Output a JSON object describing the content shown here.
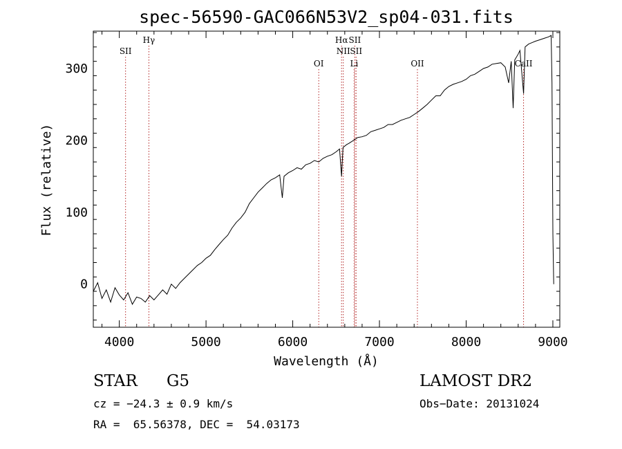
{
  "chart_data": {
    "type": "line",
    "title": "spec-56590-GAC066N53V2_sp04-031.fits",
    "xlabel": "Wavelength (Å)",
    "ylabel": "Flux (relative)",
    "xlim": [
      3700,
      9080
    ],
    "ylim": [
      -60,
      352
    ],
    "xticks": [
      4000,
      5000,
      6000,
      7000,
      8000,
      9000
    ],
    "yticks": [
      0,
      100,
      200,
      300
    ],
    "line_color": "#000000",
    "marker_color": "#b22222",
    "spectrum": [
      [
        3700,
        -10
      ],
      [
        3750,
        2
      ],
      [
        3800,
        -20
      ],
      [
        3850,
        -8
      ],
      [
        3900,
        -25
      ],
      [
        3950,
        -5
      ],
      [
        4000,
        -15
      ],
      [
        4050,
        -22
      ],
      [
        4100,
        -12
      ],
      [
        4150,
        -28
      ],
      [
        4200,
        -18
      ],
      [
        4250,
        -20
      ],
      [
        4300,
        -25
      ],
      [
        4350,
        -16
      ],
      [
        4400,
        -22
      ],
      [
        4450,
        -15
      ],
      [
        4500,
        -8
      ],
      [
        4550,
        -14
      ],
      [
        4600,
        0
      ],
      [
        4650,
        -6
      ],
      [
        4700,
        2
      ],
      [
        4750,
        8
      ],
      [
        4800,
        14
      ],
      [
        4850,
        20
      ],
      [
        4900,
        26
      ],
      [
        4950,
        30
      ],
      [
        5000,
        36
      ],
      [
        5050,
        40
      ],
      [
        5100,
        48
      ],
      [
        5150,
        55
      ],
      [
        5200,
        62
      ],
      [
        5250,
        68
      ],
      [
        5300,
        78
      ],
      [
        5350,
        86
      ],
      [
        5400,
        92
      ],
      [
        5450,
        100
      ],
      [
        5500,
        112
      ],
      [
        5550,
        120
      ],
      [
        5600,
        128
      ],
      [
        5650,
        134
      ],
      [
        5700,
        140
      ],
      [
        5750,
        145
      ],
      [
        5800,
        148
      ],
      [
        5850,
        152
      ],
      [
        5880,
        120
      ],
      [
        5900,
        150
      ],
      [
        5950,
        155
      ],
      [
        6000,
        158
      ],
      [
        6050,
        162
      ],
      [
        6100,
        160
      ],
      [
        6150,
        166
      ],
      [
        6200,
        168
      ],
      [
        6250,
        172
      ],
      [
        6300,
        170
      ],
      [
        6350,
        175
      ],
      [
        6400,
        178
      ],
      [
        6450,
        180
      ],
      [
        6500,
        184
      ],
      [
        6540,
        188
      ],
      [
        6563,
        150
      ],
      [
        6580,
        190
      ],
      [
        6620,
        194
      ],
      [
        6650,
        196
      ],
      [
        6700,
        200
      ],
      [
        6750,
        204
      ],
      [
        6800,
        205
      ],
      [
        6850,
        207
      ],
      [
        6900,
        212
      ],
      [
        6950,
        214
      ],
      [
        7000,
        216
      ],
      [
        7050,
        218
      ],
      [
        7100,
        222
      ],
      [
        7150,
        222
      ],
      [
        7200,
        225
      ],
      [
        7250,
        228
      ],
      [
        7300,
        230
      ],
      [
        7350,
        232
      ],
      [
        7400,
        236
      ],
      [
        7450,
        240
      ],
      [
        7500,
        245
      ],
      [
        7550,
        250
      ],
      [
        7600,
        256
      ],
      [
        7650,
        262
      ],
      [
        7700,
        262
      ],
      [
        7750,
        270
      ],
      [
        7800,
        275
      ],
      [
        7850,
        278
      ],
      [
        7900,
        280
      ],
      [
        7950,
        282
      ],
      [
        8000,
        285
      ],
      [
        8050,
        290
      ],
      [
        8100,
        292
      ],
      [
        8150,
        296
      ],
      [
        8200,
        300
      ],
      [
        8250,
        302
      ],
      [
        8300,
        306
      ],
      [
        8350,
        307
      ],
      [
        8400,
        308
      ],
      [
        8450,
        302
      ],
      [
        8490,
        280
      ],
      [
        8520,
        310
      ],
      [
        8542,
        245
      ],
      [
        8560,
        312
      ],
      [
        8600,
        320
      ],
      [
        8620,
        325
      ],
      [
        8662,
        265
      ],
      [
        8680,
        330
      ],
      [
        8720,
        334
      ],
      [
        8760,
        336
      ],
      [
        8800,
        338
      ],
      [
        8850,
        340
      ],
      [
        8900,
        342
      ],
      [
        8950,
        344
      ],
      [
        8980,
        346
      ],
      [
        8990,
        280
      ],
      [
        9000,
        70
      ],
      [
        9010,
        0
      ]
    ],
    "lines": [
      {
        "label": "SII",
        "x": 4072,
        "row": 2
      },
      {
        "label": "Hγ",
        "x": 4341,
        "row": 1
      },
      {
        "label": "OI",
        "x": 6300,
        "row": 3
      },
      {
        "label": "Hα",
        "x": 6563,
        "row": 1
      },
      {
        "label": "NII",
        "x": 6583,
        "row": 2
      },
      {
        "label": "SII",
        "x": 6716,
        "row": 1
      },
      {
        "label": "SII",
        "x": 6731,
        "row": 2
      },
      {
        "label": "Li",
        "x": 6708,
        "row": 3
      },
      {
        "label": "OII",
        "x": 7438,
        "row": 3
      },
      {
        "label": "CaII",
        "x": 8662,
        "row": 3
      }
    ]
  },
  "info": {
    "class": "STAR",
    "subclass": "G5",
    "survey": "LAMOST DR2",
    "cz": "cz = −24.3 ± 0.9 km/s",
    "obs_date": "Obs−Date: 20131024",
    "coords": "RA =  65.56378, DEC =  54.03173"
  }
}
